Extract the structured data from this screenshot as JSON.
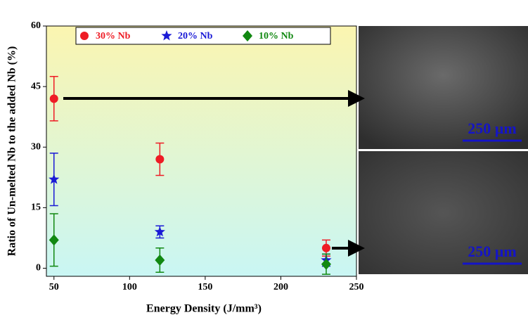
{
  "chart_data": {
    "type": "scatter",
    "xlabel": "Energy Density (J/mm³)",
    "ylabel": "Ratio of Un-melted Nb to the added Nb (%)",
    "xlim": [
      45,
      250
    ],
    "xticks": [
      50,
      100,
      150,
      200,
      250
    ],
    "ylim": [
      -2,
      60
    ],
    "yticks": [
      0,
      15,
      30,
      45,
      60
    ],
    "series": [
      {
        "name": "30% Nb",
        "color": "#ee1c25",
        "marker": "circle",
        "x": [
          50,
          120,
          230
        ],
        "values": [
          42,
          27,
          5
        ],
        "errors": [
          5.5,
          4,
          2
        ]
      },
      {
        "name": "20% Nb",
        "color": "#1a1ad6",
        "marker": "star",
        "x": [
          50,
          120,
          230
        ],
        "values": [
          22,
          9,
          2
        ],
        "errors": [
          6.5,
          1.5,
          1.5
        ]
      },
      {
        "name": "10% Nb",
        "color": "#118811",
        "marker": "diamond",
        "x": [
          50,
          120,
          230
        ],
        "values": [
          7,
          2,
          1
        ],
        "errors": [
          6.5,
          3,
          2.5
        ]
      }
    ]
  },
  "images": [
    {
      "scale_label": "250 µm"
    },
    {
      "scale_label": "250 µm"
    }
  ]
}
